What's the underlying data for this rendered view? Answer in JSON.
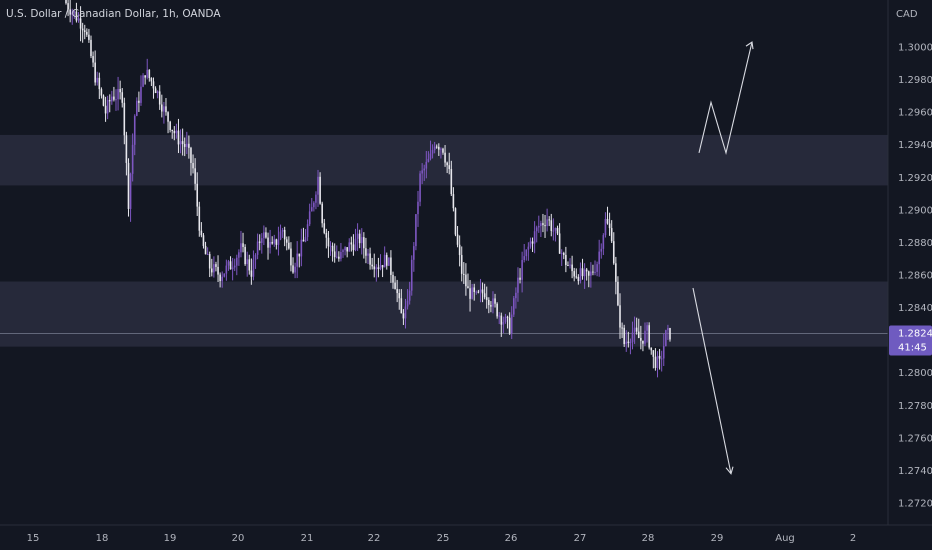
{
  "header": {
    "symbol_title": "U.S. Dollar / Canadian Dollar, 1h, OANDA",
    "currency": "CAD"
  },
  "price_label": {
    "price": "1.28241",
    "countdown": "41:45"
  },
  "colors": {
    "background": "#131722",
    "zone_fill": "#2a2d3e",
    "up_candle": "#7e57c2",
    "down_candle": "#e8e8ee",
    "price_line": "#9aa0b4",
    "price_tag": "#6f5bc0",
    "arrow": "#d9dbe2"
  },
  "chart_data": {
    "type": "candlestick",
    "title": "U.S. Dollar / Canadian Dollar, 1h, OANDA",
    "y_unit": "CAD",
    "ylim": [
      1.2705,
      1.3035
    ],
    "y_ticks": [
      "1.30000",
      "1.29800",
      "1.29600",
      "1.29400",
      "1.29200",
      "1.29000",
      "1.28800",
      "1.28600",
      "1.28400",
      "1.28200",
      "1.28000",
      "1.27800",
      "1.27600",
      "1.27400",
      "1.27200"
    ],
    "x_ticks": [
      "15",
      "18",
      "19",
      "20",
      "21",
      "22",
      "25",
      "26",
      "27",
      "28",
      "29",
      "Aug",
      "2"
    ],
    "grid": false,
    "last_price": 1.28241,
    "zones": [
      {
        "low": 1.2915,
        "high": 1.2946
      },
      {
        "low": 1.2816,
        "high": 1.2856
      }
    ],
    "close_path": [
      [
        0,
        1.3027
      ],
      [
        9,
        1.3012
      ],
      [
        14,
        1.2982
      ],
      [
        19,
        1.296
      ],
      [
        22,
        1.297
      ],
      [
        27,
        1.297
      ],
      [
        30,
        1.2905
      ],
      [
        33,
        1.2958
      ],
      [
        38,
        1.2985
      ],
      [
        43,
        1.2975
      ],
      [
        48,
        1.2958
      ],
      [
        53,
        1.2945
      ],
      [
        58,
        1.2938
      ],
      [
        61,
        1.2925
      ],
      [
        65,
        1.288
      ],
      [
        69,
        1.2865
      ],
      [
        74,
        1.286
      ],
      [
        79,
        1.2866
      ],
      [
        84,
        1.2876
      ],
      [
        89,
        1.2862
      ],
      [
        94,
        1.2886
      ],
      [
        99,
        1.2876
      ],
      [
        104,
        1.2888
      ],
      [
        109,
        1.2866
      ],
      [
        114,
        1.288
      ],
      [
        118,
        1.29
      ],
      [
        121,
        1.292
      ],
      [
        123,
        1.2895
      ],
      [
        126,
        1.2878
      ],
      [
        131,
        1.287
      ],
      [
        136,
        1.2878
      ],
      [
        141,
        1.2882
      ],
      [
        146,
        1.287
      ],
      [
        150,
        1.2866
      ],
      [
        154,
        1.287
      ],
      [
        158,
        1.2855
      ],
      [
        161,
        1.2835
      ],
      [
        164,
        1.284
      ],
      [
        167,
        1.288
      ],
      [
        170,
        1.292
      ],
      [
        175,
        1.2932
      ],
      [
        177,
        1.2942
      ],
      [
        181,
        1.2938
      ],
      [
        184,
        1.2922
      ],
      [
        187,
        1.2885
      ],
      [
        190,
        1.2862
      ],
      [
        193,
        1.285
      ],
      [
        197,
        1.2846
      ],
      [
        201,
        1.285
      ],
      [
        205,
        1.2842
      ],
      [
        209,
        1.2834
      ],
      [
        213,
        1.2828
      ],
      [
        217,
        1.2856
      ],
      [
        220,
        1.287
      ],
      [
        223,
        1.288
      ],
      [
        227,
        1.289
      ],
      [
        231,
        1.2895
      ],
      [
        235,
        1.2885
      ],
      [
        239,
        1.287
      ],
      [
        243,
        1.2862
      ],
      [
        247,
        1.286
      ],
      [
        251,
        1.2858
      ],
      [
        255,
        1.2868
      ],
      [
        259,
        1.2893
      ],
      [
        262,
        1.2885
      ],
      [
        265,
        1.2838
      ],
      [
        268,
        1.2818
      ],
      [
        272,
        1.2825
      ],
      [
        276,
        1.282
      ],
      [
        279,
        1.2825
      ],
      [
        282,
        1.2808
      ],
      [
        285,
        1.2805
      ],
      [
        288,
        1.2823
      ],
      [
        290,
        1.2824
      ]
    ],
    "annotations": [
      {
        "type": "arrow",
        "direction": "up",
        "points": [
          [
            1.2935,
            0
          ],
          [
            1.2966,
            0
          ],
          [
            1.2935,
            0
          ],
          [
            1.3003,
            0
          ]
        ]
      },
      {
        "type": "arrow",
        "direction": "down",
        "points": [
          [
            1.2852,
            0
          ],
          [
            1.2738,
            0
          ]
        ]
      }
    ]
  }
}
